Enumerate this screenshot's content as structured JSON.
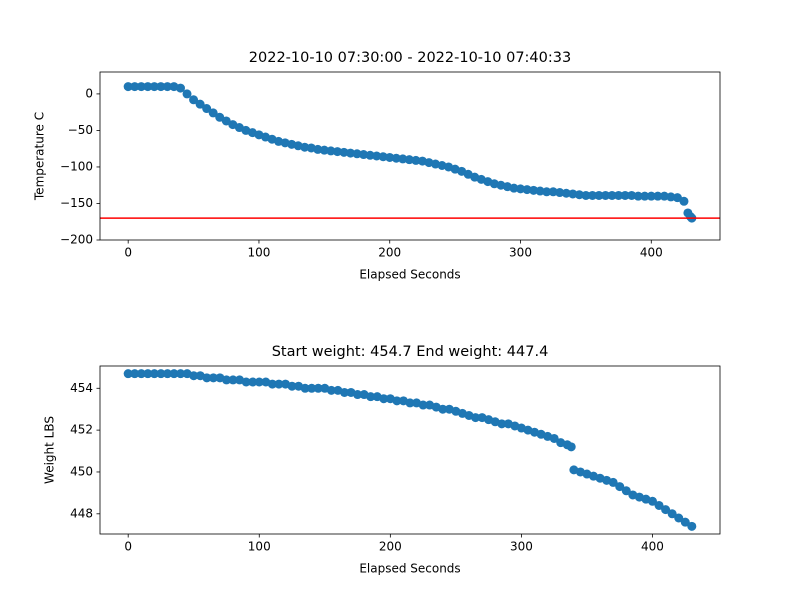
{
  "chart_data": [
    {
      "type": "scatter",
      "title": "2022-10-10 07:30:00 - 2022-10-10 07:40:33",
      "x_label": "Elapsed Seconds",
      "y_label": "Temperature C",
      "color": "#1f77b4",
      "x": [
        0,
        5,
        10,
        15,
        20,
        25,
        30,
        35,
        40,
        45,
        50,
        55,
        60,
        65,
        70,
        75,
        80,
        85,
        90,
        95,
        100,
        105,
        110,
        115,
        120,
        125,
        130,
        135,
        140,
        145,
        150,
        155,
        160,
        165,
        170,
        175,
        180,
        185,
        190,
        195,
        200,
        205,
        210,
        215,
        220,
        225,
        230,
        235,
        240,
        245,
        250,
        255,
        260,
        265,
        270,
        275,
        280,
        285,
        290,
        295,
        300,
        305,
        310,
        315,
        320,
        325,
        330,
        335,
        340,
        345,
        350,
        355,
        360,
        365,
        370,
        375,
        380,
        385,
        390,
        395,
        400,
        405,
        410,
        415,
        420,
        425,
        428,
        430,
        431
      ],
      "values": [
        10,
        10,
        10,
        10,
        10,
        10,
        10,
        10,
        8,
        0,
        -8,
        -14,
        -20,
        -26,
        -32,
        -37,
        -42,
        -46,
        -50,
        -53,
        -56,
        -59,
        -62,
        -65,
        -67,
        -69,
        -71,
        -73,
        -74,
        -76,
        -77,
        -78,
        -79,
        -80,
        -81,
        -82,
        -83,
        -84,
        -85,
        -86,
        -87,
        -88,
        -89,
        -90,
        -91,
        -92,
        -94,
        -96,
        -98,
        -100,
        -103,
        -106,
        -110,
        -114,
        -117,
        -120,
        -123,
        -125,
        -127,
        -129,
        -130,
        -131,
        -132,
        -133,
        -134,
        -134,
        -135,
        -136,
        -137,
        -138,
        -139,
        -139,
        -139,
        -139,
        -139,
        -139,
        -139,
        -139,
        -140,
        -140,
        -140,
        -140,
        -140,
        -141,
        -142,
        -147,
        -163,
        -168,
        -170
      ],
      "hline": -170,
      "hline_color": "red",
      "xlim": [
        -21.55,
        452.55
      ],
      "xticks": [
        0,
        100,
        200,
        300,
        400
      ],
      "ylim": [
        -200,
        30
      ],
      "yticks": [
        {
          "value": -200,
          "label": "−200"
        },
        {
          "value": -150,
          "label": "−150"
        },
        {
          "value": -100,
          "label": "−100"
        },
        {
          "value": -50,
          "label": "−50"
        },
        0
      ]
    },
    {
      "type": "scatter",
      "title": "Start weight: 454.7 End weight: 447.4",
      "x_label": "Elapsed Seconds",
      "y_label": "Weight LBS",
      "color": "#1f77b4",
      "x": [
        0,
        5,
        10,
        15,
        20,
        25,
        30,
        35,
        40,
        45,
        50,
        55,
        60,
        65,
        70,
        75,
        80,
        85,
        90,
        95,
        100,
        105,
        110,
        115,
        120,
        125,
        130,
        135,
        140,
        145,
        150,
        155,
        160,
        165,
        170,
        175,
        180,
        185,
        190,
        195,
        200,
        205,
        210,
        215,
        220,
        225,
        230,
        235,
        240,
        245,
        250,
        255,
        260,
        265,
        270,
        275,
        280,
        285,
        290,
        295,
        300,
        305,
        310,
        315,
        320,
        325,
        330,
        335,
        338,
        340,
        345,
        350,
        355,
        360,
        365,
        370,
        375,
        380,
        385,
        390,
        395,
        400,
        405,
        410,
        415,
        420,
        425,
        430
      ],
      "values": [
        454.7,
        454.7,
        454.7,
        454.7,
        454.7,
        454.7,
        454.7,
        454.7,
        454.7,
        454.7,
        454.6,
        454.6,
        454.5,
        454.5,
        454.5,
        454.4,
        454.4,
        454.4,
        454.3,
        454.3,
        454.3,
        454.3,
        454.2,
        454.2,
        454.2,
        454.1,
        454.1,
        454.0,
        454.0,
        454.0,
        454.0,
        453.9,
        453.9,
        453.8,
        453.8,
        453.7,
        453.7,
        453.6,
        453.6,
        453.5,
        453.5,
        453.4,
        453.4,
        453.3,
        453.3,
        453.2,
        453.2,
        453.1,
        453.0,
        453.0,
        452.9,
        452.8,
        452.7,
        452.6,
        452.6,
        452.5,
        452.4,
        452.3,
        452.3,
        452.2,
        452.1,
        452.0,
        451.9,
        451.8,
        451.7,
        451.6,
        451.4,
        451.3,
        451.2,
        450.1,
        450.0,
        449.9,
        449.8,
        449.7,
        449.6,
        449.5,
        449.3,
        449.1,
        448.9,
        448.8,
        448.7,
        448.6,
        448.4,
        448.2,
        448.0,
        447.8,
        447.6,
        447.4
      ],
      "xlim": [
        -21.5,
        451.5
      ],
      "xticks": [
        0,
        100,
        200,
        300,
        400
      ],
      "ylim": [
        447.035,
        455.065
      ],
      "yticks": [
        448,
        450,
        452,
        454
      ]
    }
  ]
}
